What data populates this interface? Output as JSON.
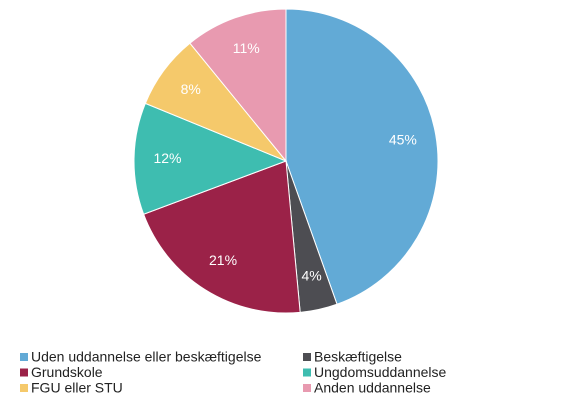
{
  "chart_data": {
    "type": "pie",
    "categories": [
      "Uden uddannelse eller beskæftigelse",
      "Beskæftigelse",
      "Grundskole",
      "Ungdomsuddannelse",
      "FGU eller STU",
      "Anden uddannelse"
    ],
    "values": [
      45,
      4,
      21,
      12,
      8,
      11
    ],
    "value_labels": [
      "45%",
      "4%",
      "21%",
      "12%",
      "8%",
      "11%"
    ],
    "colors": [
      "#62aad6",
      "#4d4d52",
      "#9b2248",
      "#3ebdb0",
      "#f5c96b",
      "#e89ab0"
    ]
  }
}
